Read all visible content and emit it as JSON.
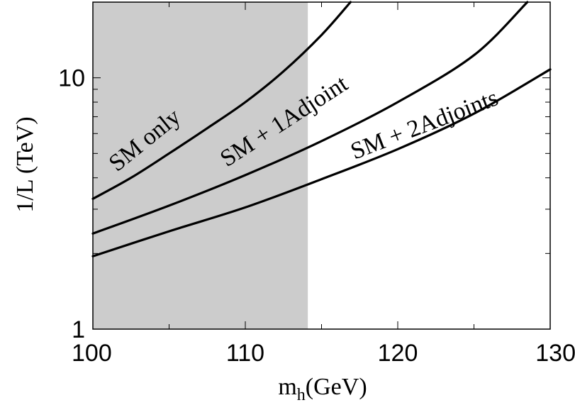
{
  "chart_data": {
    "type": "line",
    "title": "",
    "xlabel": "m",
    "xlabel_sub": "h",
    "xlabel_suffix": "(GeV)",
    "ylabel": "1/L (TeV)",
    "xlim": [
      100,
      130
    ],
    "ylim": [
      1,
      20
    ],
    "yscale": "log",
    "x_ticks": [
      100,
      110,
      120,
      130
    ],
    "x_tick_labels": [
      "100",
      "110",
      "120",
      "130"
    ],
    "y_tick_labels": [
      {
        "value": 1,
        "label": "1"
      },
      {
        "value": 10,
        "label": "10"
      }
    ],
    "minor_y_ticks": [
      2,
      3,
      4,
      5,
      6,
      7,
      8,
      9
    ],
    "shaded_region": {
      "x_from": 100,
      "x_to": 114.1,
      "color": "#cccccc"
    },
    "line_color": "#000000",
    "series": [
      {
        "name": "SM only",
        "x": [
          100,
          102.5,
          105,
          107.5,
          110,
          112.5,
          115,
          116.9
        ],
        "values": [
          3.3,
          4.0,
          5.0,
          6.3,
          8.0,
          10.6,
          14.8,
          20.0
        ]
      },
      {
        "name": "SM + 1Adjoint",
        "x": [
          100,
          105,
          110,
          115,
          120,
          125,
          128.5
        ],
        "values": [
          2.4,
          3.1,
          4.1,
          5.6,
          8.0,
          12.3,
          20.0
        ]
      },
      {
        "name": "SM + 2Adjoints",
        "x": [
          100,
          105,
          110,
          115,
          120,
          125,
          130
        ],
        "values": [
          1.95,
          2.45,
          3.05,
          3.95,
          5.2,
          7.2,
          10.8
        ]
      }
    ]
  }
}
